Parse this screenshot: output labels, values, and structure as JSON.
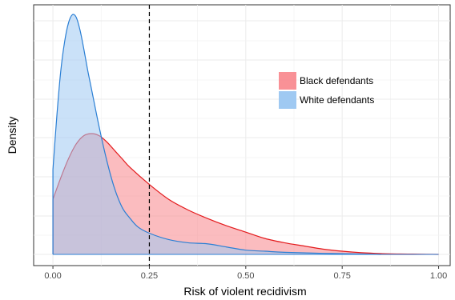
{
  "chart_data": {
    "type": "area",
    "xlabel": "Risk of violent recidivism",
    "ylabel": "Density",
    "xlim": [
      -0.05,
      1.03
    ],
    "x_ticks": [
      0.0,
      0.25,
      0.5,
      0.75,
      1.0
    ],
    "x_tick_labels": [
      "0.00",
      "0.25",
      "0.50",
      "0.75",
      "1.00"
    ],
    "y_ticks_labeled": false,
    "grid": true,
    "legend_position": "top-right",
    "reference_line": {
      "x": 0.25,
      "style": "dashed"
    },
    "series": [
      {
        "name": "Black defendants",
        "fill": "#f8858b",
        "stroke": "#e31a1c",
        "x": [
          0.0,
          0.02,
          0.04,
          0.06,
          0.08,
          0.1,
          0.12,
          0.14,
          0.16,
          0.18,
          0.2,
          0.25,
          0.3,
          0.35,
          0.4,
          0.45,
          0.5,
          0.55,
          0.6,
          0.65,
          0.7,
          0.75,
          0.8,
          0.85,
          0.9,
          0.95,
          1.0
        ],
        "y": [
          0.26,
          0.36,
          0.45,
          0.52,
          0.56,
          0.57,
          0.56,
          0.53,
          0.49,
          0.45,
          0.41,
          0.33,
          0.26,
          0.21,
          0.17,
          0.135,
          0.105,
          0.075,
          0.055,
          0.04,
          0.025,
          0.015,
          0.008,
          0.004,
          0.002,
          0.001,
          0.0
        ]
      },
      {
        "name": "White defendants",
        "fill": "#9fc9f2",
        "stroke": "#2b7fd4",
        "x": [
          0.0,
          0.01,
          0.02,
          0.03,
          0.04,
          0.05,
          0.06,
          0.07,
          0.08,
          0.09,
          0.1,
          0.12,
          0.14,
          0.16,
          0.18,
          0.2,
          0.22,
          0.25,
          0.3,
          0.35,
          0.4,
          0.45,
          0.5,
          0.55,
          0.6,
          0.7,
          0.8,
          0.85
        ],
        "y": [
          0.4,
          0.65,
          0.86,
          1.0,
          1.09,
          1.13,
          1.12,
          1.06,
          0.97,
          0.87,
          0.78,
          0.6,
          0.44,
          0.31,
          0.22,
          0.17,
          0.13,
          0.1,
          0.07,
          0.055,
          0.05,
          0.035,
          0.02,
          0.015,
          0.01,
          0.005,
          0.002,
          0.0
        ]
      }
    ]
  }
}
